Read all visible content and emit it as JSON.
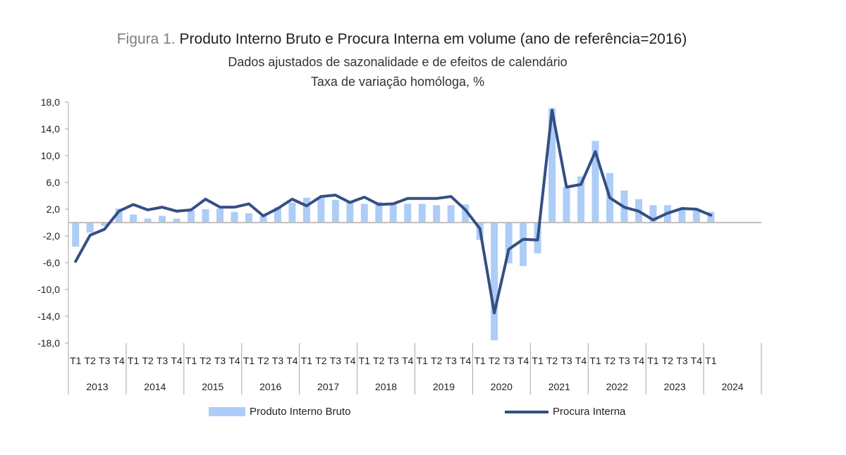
{
  "chart_data": {
    "type": "bar+line",
    "title_prefix": "Figura 1.",
    "title": "Produto Interno Bruto e Procura Interna em volume (ano de referência=2016)",
    "subtitle": "Dados ajustados de sazonalidade e de efeitos de calendário",
    "subtitle2": "Taxa de variação homóloga, %",
    "ylim": [
      -18,
      18
    ],
    "yticks": [
      "18,0",
      "14,0",
      "10,0",
      "6,0",
      "2,0",
      "-2,0",
      "-6,0",
      "-10,0",
      "-14,0",
      "-18,0"
    ],
    "ytick_values": [
      18,
      14,
      10,
      6,
      2,
      -2,
      -6,
      -10,
      -14,
      -18
    ],
    "years": [
      "2013",
      "2014",
      "2015",
      "2016",
      "2017",
      "2018",
      "2019",
      "2020",
      "2021",
      "2022",
      "2023",
      "2024"
    ],
    "quarters": [
      "T1",
      "T2",
      "T3",
      "T4"
    ],
    "quarters_last_year": [
      "T1"
    ],
    "grid": false,
    "legend_position": "bottom",
    "series": [
      {
        "name": "Produto Interno Bruto",
        "type": "bar",
        "color": "#adcdf7",
        "values": [
          -3.6,
          -1.5,
          -0.5,
          2.1,
          1.2,
          0.6,
          1.0,
          0.6,
          1.8,
          2.0,
          2.1,
          1.6,
          1.4,
          1.0,
          2.3,
          3.0,
          3.7,
          3.7,
          3.4,
          3.1,
          2.8,
          3.1,
          2.7,
          2.8,
          2.8,
          2.6,
          2.6,
          2.7,
          -2.6,
          -17.6,
          -6.1,
          -6.5,
          -4.6,
          17.1,
          5.3,
          6.9,
          12.2,
          7.4,
          4.8,
          3.5,
          2.6,
          2.6,
          1.9,
          1.8,
          1.6
        ]
      },
      {
        "name": "Procura Interna",
        "type": "line",
        "color": "#354f84",
        "values": [
          -5.8,
          -1.9,
          -1.0,
          1.7,
          2.7,
          1.9,
          2.3,
          1.7,
          1.9,
          3.5,
          2.3,
          2.3,
          2.8,
          1.0,
          2.1,
          3.5,
          2.5,
          3.9,
          4.1,
          3.0,
          3.8,
          2.7,
          2.8,
          3.6,
          3.6,
          3.6,
          3.9,
          1.9,
          -0.9,
          -13.5,
          -4.0,
          -2.5,
          -2.6,
          16.8,
          5.3,
          5.7,
          10.6,
          3.7,
          2.3,
          1.7,
          0.4,
          1.4,
          2.1,
          2.0,
          1.1
        ]
      }
    ]
  }
}
